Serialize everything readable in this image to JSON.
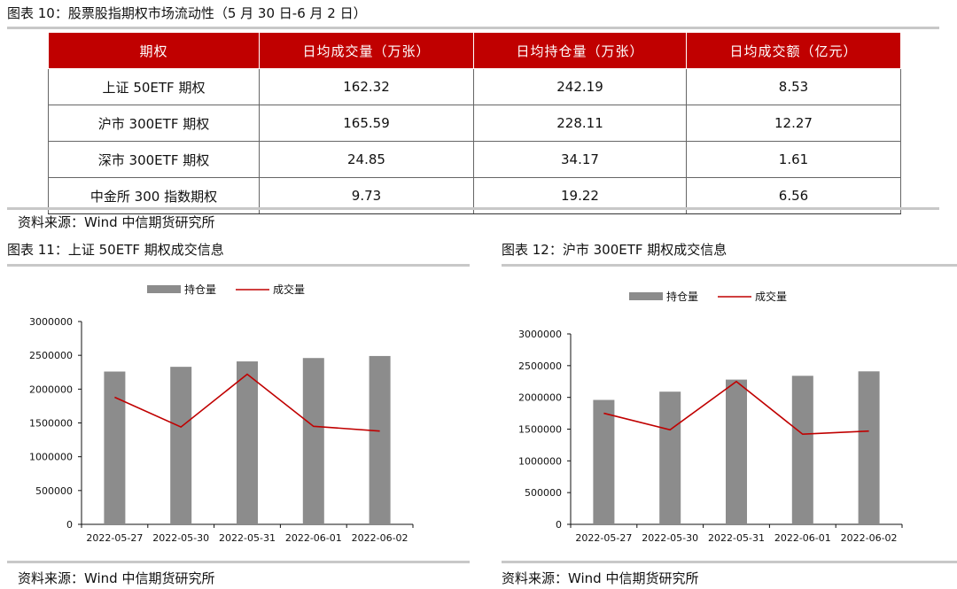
{
  "table_section": {
    "title": "图表 10：股票股指期权市场流动性（5 月 30 日-6 月 2 日）",
    "headers": [
      "期权",
      "日均成交量（万张）",
      "日均持仓量（万张）",
      "日均成交额（亿元）"
    ],
    "rows": [
      [
        "上证 50ETF 期权",
        "162.32",
        "242.19",
        "8.53"
      ],
      [
        "沪市 300ETF 期权",
        "165.59",
        "228.11",
        "12.27"
      ],
      [
        "深市 300ETF 期权",
        "24.85",
        "34.17",
        "1.61"
      ],
      [
        "中金所 300 指数期权",
        "9.73",
        "19.22",
        "6.56"
      ]
    ],
    "source": "资料来源：Wind 中信期货研究所"
  },
  "colors": {
    "header_red": "#c00000",
    "bar_gray": "#8c8c8c",
    "line_red": "#c00000",
    "rule_gray": "#c8c8c8"
  },
  "chart_data": [
    {
      "type": "bar",
      "title": "图表 11：上证 50ETF 期权成交信息",
      "categories": [
        "2022-05-27",
        "2022-05-30",
        "2022-05-31",
        "2022-06-01",
        "2022-06-02"
      ],
      "series": [
        {
          "name": "持仓量",
          "type": "bar",
          "values": [
            2260000,
            2330000,
            2410000,
            2460000,
            2490000
          ]
        },
        {
          "name": "成交量",
          "type": "line",
          "values": [
            1880000,
            1440000,
            2220000,
            1450000,
            1380000
          ]
        }
      ],
      "ylim": [
        0,
        3000000
      ],
      "yticks": [
        "0",
        "500000",
        "1000000",
        "1500000",
        "2000000",
        "2500000",
        "3000000"
      ],
      "legend_position": "top-center",
      "grid": false,
      "source": "资料来源：Wind 中信期货研究所"
    },
    {
      "type": "bar",
      "title": "图表 12：沪市 300ETF 期权成交信息",
      "categories": [
        "2022-05-27",
        "2022-05-30",
        "2022-05-31",
        "2022-06-01",
        "2022-06-02"
      ],
      "series": [
        {
          "name": "持仓量",
          "type": "bar",
          "values": [
            1960000,
            2090000,
            2280000,
            2340000,
            2410000
          ]
        },
        {
          "name": "成交量",
          "type": "line",
          "values": [
            1750000,
            1490000,
            2250000,
            1420000,
            1470000
          ]
        }
      ],
      "ylim": [
        0,
        3000000
      ],
      "yticks": [
        "0",
        "500000",
        "1000000",
        "1500000",
        "2000000",
        "2500000",
        "3000000"
      ],
      "legend_position": "top-center",
      "grid": false,
      "source": "资料来源：Wind 中信期货研究所"
    }
  ]
}
